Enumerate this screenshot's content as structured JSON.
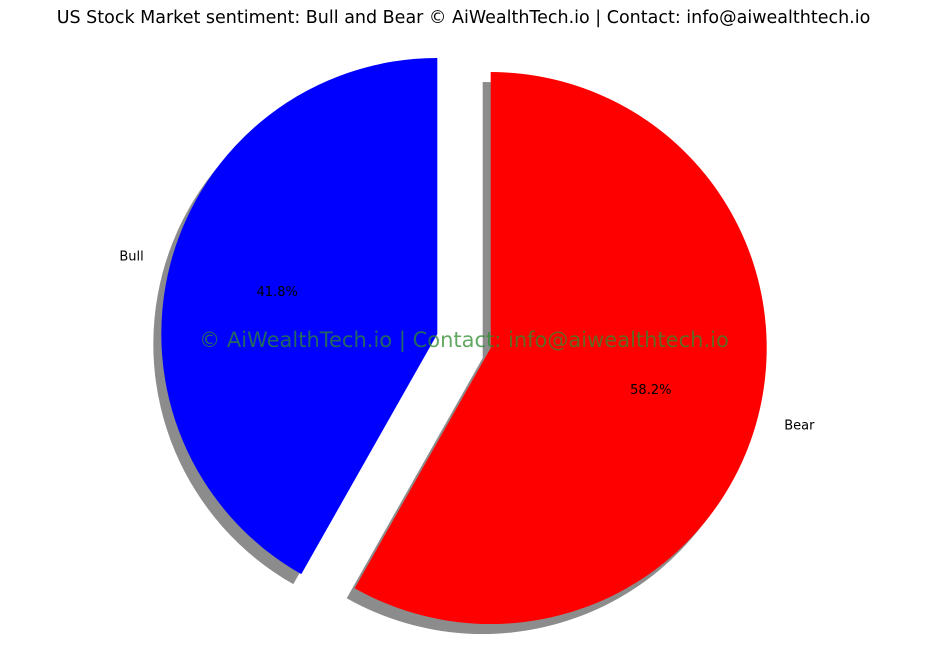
{
  "chart_data": {
    "type": "pie",
    "title": "US Stock Market sentiment: Bull and Bear © AiWealthTech.io | Contact: info@aiwealthtech.io",
    "slices": [
      {
        "label": "Bull",
        "value": 41.8,
        "pct_label": "41.8%",
        "color": "#0000ff",
        "exploded": true
      },
      {
        "label": "Bear",
        "value": 58.2,
        "pct_label": "58.2%",
        "color": "#ff0000",
        "exploded": true
      }
    ],
    "start_angle": 90,
    "direction": "counterclockwise",
    "shadow": true,
    "watermark": {
      "text": "© AiWealthTech.io | Contact: info@aiwealthtech.io",
      "color": "#2e8b2e"
    }
  }
}
